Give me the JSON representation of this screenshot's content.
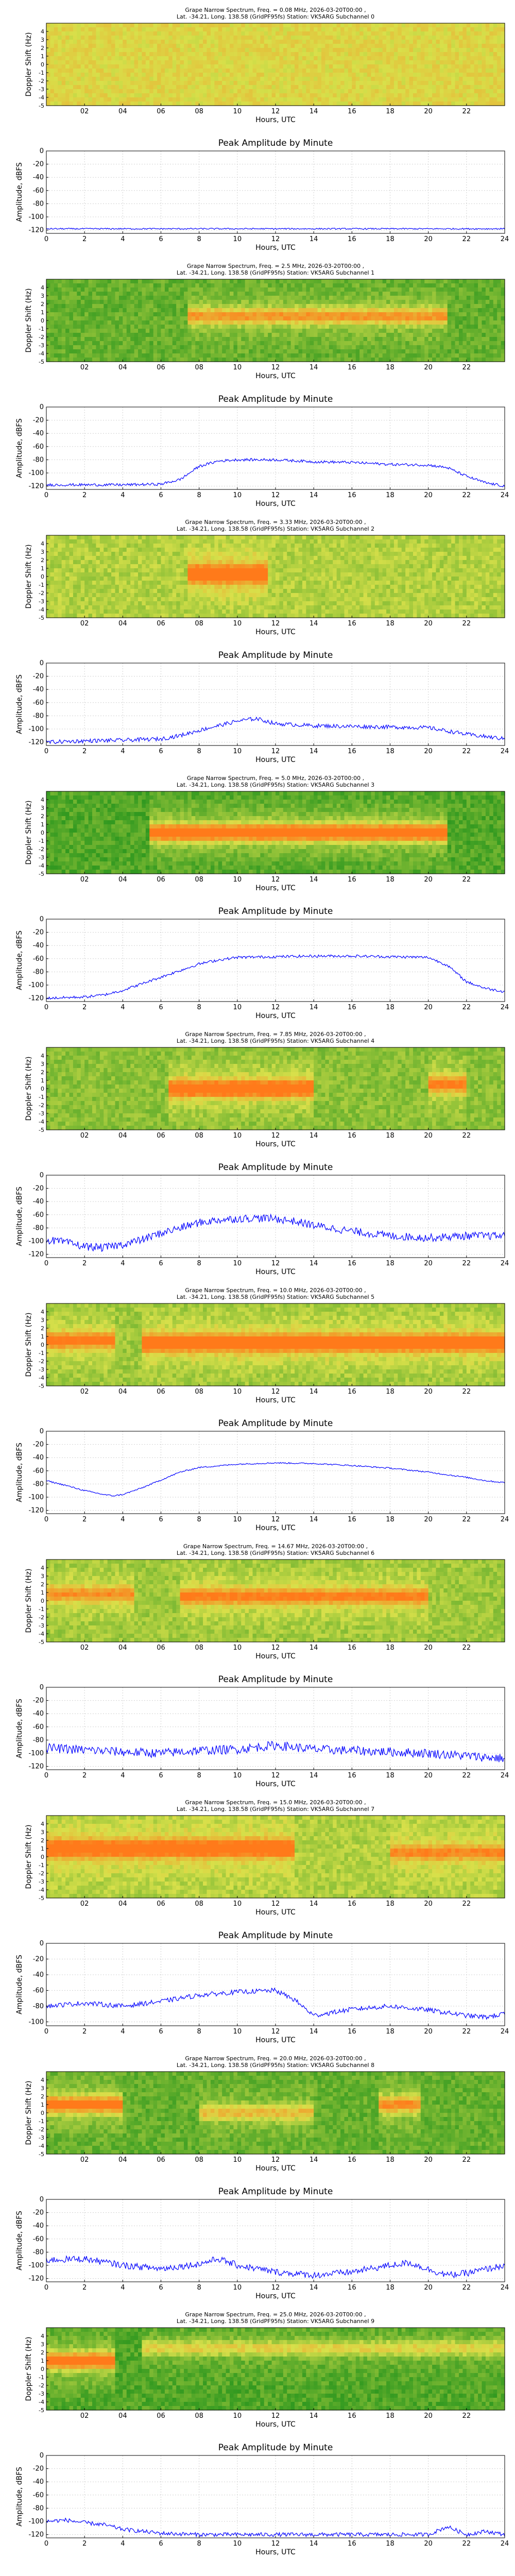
{
  "figure": {
    "spectrum_x_ticks": [
      "02",
      "04",
      "06",
      "08",
      "10",
      "12",
      "14",
      "16",
      "18",
      "20",
      "22"
    ],
    "amplitude_x_ticks": [
      "0",
      "2",
      "4",
      "6",
      "8",
      "10",
      "12",
      "14",
      "16",
      "18",
      "20",
      "22",
      "24"
    ],
    "doppler_y_ticks": [
      "4",
      "3",
      "2",
      "1",
      "0",
      "-1",
      "-2",
      "-3",
      "-4",
      "-5"
    ],
    "amplitude_y_ticks": [
      "0",
      "-20",
      "-40",
      "-60",
      "-80",
      "-100",
      "-120"
    ],
    "spectrum_xlabel": "Hours, UTC",
    "spectrum_ylabel": "Doppler Shift (Hz)",
    "amplitude_title": "Peak Amplitude by Minute",
    "amplitude_xlabel": "Hours, UTC",
    "amplitude_ylabel": "Amplitude, dBFS"
  },
  "colors": {
    "spectrum_low": "#1a8f1a",
    "spectrum_mid": "#d8e04a",
    "spectrum_high": "#ff7a1a",
    "amplitude_line": "#0000ff",
    "grid": "#d0d0d0"
  },
  "chart_data": [
    {
      "type": "heatmap",
      "subchannel": 0,
      "title": "Grape Narrow Spectrum, Freq. = 0.08 MHz, 2026-03-20T00:00 ,\nLat. -34.21, Long. 138.58 (GridPF95fs) Station: VK5ARG Subchannel 0",
      "xlabel": "Hours, UTC",
      "ylabel": "Doppler Shift (Hz)",
      "xlim": [
        0,
        24
      ],
      "ylim": [
        -5,
        5
      ],
      "base_level": 0.55,
      "signal": []
    },
    {
      "type": "line",
      "subchannel": 0,
      "title": "Peak Amplitude by Minute",
      "xlabel": "Hours, UTC",
      "ylabel": "Amplitude, dBFS",
      "xlim": [
        0,
        24
      ],
      "ylim": [
        -125,
        0
      ],
      "x": [
        0,
        2,
        4,
        6,
        8,
        10,
        12,
        14,
        16,
        18,
        20,
        22,
        24
      ],
      "y": [
        -118,
        -118,
        -118,
        -118,
        -118,
        -118,
        -118,
        -118,
        -118,
        -118,
        -118,
        -118,
        -118
      ],
      "noise": 1
    },
    {
      "type": "heatmap",
      "subchannel": 1,
      "title": "Grape Narrow Spectrum, Freq. = 2.5 MHz, 2026-03-20T00:00 ,\nLat. -34.21, Long. 138.58 (GridPF95fs) Station: VK5ARG Subchannel 1",
      "xlabel": "Hours, UTC",
      "ylabel": "Doppler Shift (Hz)",
      "xlim": [
        0,
        24
      ],
      "ylim": [
        -5,
        5
      ],
      "base_level": 0.2,
      "signal": [
        {
          "t0": 7.5,
          "t1": 21.0,
          "f": 0.5,
          "strength": 0.55
        }
      ]
    },
    {
      "type": "line",
      "subchannel": 1,
      "title": "Peak Amplitude by Minute",
      "xlabel": "Hours, UTC",
      "ylabel": "Amplitude, dBFS",
      "xlim": [
        0,
        24
      ],
      "ylim": [
        -125,
        0
      ],
      "x": [
        0,
        2,
        4,
        6,
        7,
        8,
        9,
        10,
        12,
        14,
        16,
        18,
        20,
        21,
        22,
        23,
        24
      ],
      "y": [
        -118,
        -118,
        -118,
        -117,
        -110,
        -90,
        -82,
        -80,
        -80,
        -83,
        -84,
        -87,
        -88,
        -92,
        -105,
        -115,
        -120
      ],
      "noise": 2
    },
    {
      "type": "heatmap",
      "subchannel": 2,
      "title": "Grape Narrow Spectrum, Freq. = 3.33 MHz, 2026-03-20T00:00 ,\nLat. -34.21, Long. 138.58 (GridPF95fs) Station: VK5ARG Subchannel 2",
      "xlabel": "Hours, UTC",
      "ylabel": "Doppler Shift (Hz)",
      "xlim": [
        0,
        24
      ],
      "ylim": [
        -5,
        5
      ],
      "base_level": 0.4,
      "signal": [
        {
          "t0": 7.5,
          "t1": 11.5,
          "f": 0.3,
          "strength": 0.9
        }
      ]
    },
    {
      "type": "line",
      "subchannel": 2,
      "title": "Peak Amplitude by Minute",
      "xlabel": "Hours, UTC",
      "ylabel": "Amplitude, dBFS",
      "xlim": [
        0,
        24
      ],
      "ylim": [
        -125,
        0
      ],
      "x": [
        0,
        2,
        4,
        6,
        7,
        8,
        9,
        10,
        11,
        12,
        14,
        16,
        18,
        20,
        22,
        24
      ],
      "y": [
        -120,
        -118,
        -117,
        -115,
        -110,
        -102,
        -95,
        -88,
        -84,
        -92,
        -95,
        -96,
        -97,
        -98,
        -108,
        -115
      ],
      "noise": 3
    },
    {
      "type": "heatmap",
      "subchannel": 3,
      "title": "Grape Narrow Spectrum, Freq. = 5.0 MHz, 2026-03-20T00:00 ,\nLat. -34.21, Long. 138.58 (GridPF95fs) Station: VK5ARG Subchannel 3",
      "xlabel": "Hours, UTC",
      "ylabel": "Doppler Shift (Hz)",
      "xlim": [
        0,
        24
      ],
      "ylim": [
        -5,
        5
      ],
      "base_level": 0.15,
      "signal": [
        {
          "t0": 5.5,
          "t1": 21.0,
          "f": 0.0,
          "strength": 0.95
        }
      ]
    },
    {
      "type": "line",
      "subchannel": 3,
      "title": "Peak Amplitude by Minute",
      "xlabel": "Hours, UTC",
      "ylabel": "Amplitude, dBFS",
      "xlim": [
        0,
        24
      ],
      "ylim": [
        -125,
        0
      ],
      "x": [
        0,
        2,
        3,
        4,
        5,
        6,
        7,
        8,
        9,
        10,
        12,
        14,
        16,
        18,
        20,
        21,
        22,
        23,
        24
      ],
      "y": [
        -120,
        -118,
        -115,
        -108,
        -98,
        -88,
        -78,
        -68,
        -62,
        -58,
        -57,
        -56,
        -56,
        -57,
        -58,
        -70,
        -95,
        -105,
        -110
      ],
      "noise": 2
    },
    {
      "type": "heatmap",
      "subchannel": 4,
      "title": "Grape Narrow Spectrum, Freq. = 7.85 MHz, 2026-03-20T00:00 ,\nLat. -34.21, Long. 138.58 (GridPF95fs) Station: VK5ARG Subchannel 4",
      "xlabel": "Hours, UTC",
      "ylabel": "Doppler Shift (Hz)",
      "xlim": [
        0,
        24
      ],
      "ylim": [
        -5,
        5
      ],
      "base_level": 0.3,
      "signal": [
        {
          "t0": 6.5,
          "t1": 14.0,
          "f": 0.0,
          "strength": 0.85
        },
        {
          "t0": 20.0,
          "t1": 22.0,
          "f": 0.5,
          "strength": 0.6
        }
      ]
    },
    {
      "type": "line",
      "subchannel": 4,
      "title": "Peak Amplitude by Minute",
      "xlabel": "Hours, UTC",
      "ylabel": "Amplitude, dBFS",
      "xlim": [
        0,
        24
      ],
      "ylim": [
        -125,
        0
      ],
      "x": [
        0,
        1,
        2,
        3,
        4,
        5,
        6,
        7,
        8,
        9,
        10,
        11,
        12,
        13,
        14,
        16,
        18,
        20,
        22,
        24
      ],
      "y": [
        -98,
        -102,
        -108,
        -110,
        -105,
        -98,
        -88,
        -80,
        -72,
        -68,
        -66,
        -65,
        -66,
        -70,
        -76,
        -85,
        -92,
        -95,
        -92,
        -92
      ],
      "noise": 6
    },
    {
      "type": "heatmap",
      "subchannel": 5,
      "title": "Grape Narrow Spectrum, Freq. = 10.0 MHz, 2026-03-20T00:00 ,\nLat. -34.21, Long. 138.58 (GridPF95fs) Station: VK5ARG Subchannel 5",
      "xlabel": "Hours, UTC",
      "ylabel": "Doppler Shift (Hz)",
      "xlim": [
        0,
        24
      ],
      "ylim": [
        -5,
        5
      ],
      "base_level": 0.35,
      "signal": [
        {
          "t0": 0.0,
          "t1": 3.5,
          "f": 0.5,
          "strength": 0.6
        },
        {
          "t0": 5.0,
          "t1": 24.0,
          "f": 0.2,
          "strength": 0.85
        }
      ]
    },
    {
      "type": "line",
      "subchannel": 5,
      "title": "Peak Amplitude by Minute",
      "xlabel": "Hours, UTC",
      "ylabel": "Amplitude, dBFS",
      "xlim": [
        0,
        24
      ],
      "ylim": [
        -125,
        0
      ],
      "x": [
        0,
        1,
        2,
        3,
        3.5,
        4,
        5,
        6,
        7,
        8,
        10,
        12,
        14,
        16,
        18,
        20,
        22,
        23,
        24
      ],
      "y": [
        -75,
        -82,
        -90,
        -96,
        -98,
        -96,
        -86,
        -74,
        -62,
        -55,
        -50,
        -48,
        -49,
        -52,
        -56,
        -62,
        -70,
        -75,
        -78
      ],
      "noise": 1
    },
    {
      "type": "heatmap",
      "subchannel": 6,
      "title": "Grape Narrow Spectrum, Freq. = 14.67 MHz, 2026-03-20T00:00 ,\nLat. -34.21, Long. 138.58 (GridPF95fs) Station: VK5ARG Subchannel 6",
      "xlabel": "Hours, UTC",
      "ylabel": "Doppler Shift (Hz)",
      "xlim": [
        0,
        24
      ],
      "ylim": [
        -5,
        5
      ],
      "base_level": 0.35,
      "signal": [
        {
          "t0": 0.0,
          "t1": 4.5,
          "f": 0.8,
          "strength": 0.45
        },
        {
          "t0": 7.0,
          "t1": 20.0,
          "f": 0.5,
          "strength": 0.55
        }
      ]
    },
    {
      "type": "line",
      "subchannel": 6,
      "title": "Peak Amplitude by Minute",
      "xlabel": "Hours, UTC",
      "ylabel": "Amplitude, dBFS",
      "xlim": [
        0,
        24
      ],
      "ylim": [
        -125,
        0
      ],
      "x": [
        0,
        2,
        4,
        6,
        8,
        10,
        12,
        14,
        16,
        18,
        20,
        22,
        24
      ],
      "y": [
        -92,
        -95,
        -98,
        -100,
        -96,
        -94,
        -88,
        -94,
        -96,
        -98,
        -100,
        -104,
        -108
      ],
      "noise": 7
    },
    {
      "type": "heatmap",
      "subchannel": 7,
      "title": "Grape Narrow Spectrum, Freq. = 15.0 MHz, 2026-03-20T00:00 ,\nLat. -34.21, Long. 138.58 (GridPF95fs) Station: VK5ARG Subchannel 7",
      "xlabel": "Hours, UTC",
      "ylabel": "Doppler Shift (Hz)",
      "xlim": [
        0,
        24
      ],
      "ylim": [
        -5,
        5
      ],
      "base_level": 0.4,
      "signal": [
        {
          "t0": 0.0,
          "t1": 13.0,
          "f": 1.0,
          "strength": 0.8
        },
        {
          "t0": 18.0,
          "t1": 24.0,
          "f": 0.5,
          "strength": 0.45
        }
      ]
    },
    {
      "type": "line",
      "subchannel": 7,
      "title": "Peak Amplitude by Minute",
      "xlabel": "Hours, UTC",
      "ylabel": "Amplitude, dBFS",
      "xlim": [
        0,
        24
      ],
      "ylim": [
        -105,
        0
      ],
      "x": [
        0,
        2,
        4,
        6,
        8,
        10,
        12,
        13,
        14,
        15,
        16,
        18,
        20,
        22,
        23,
        24
      ],
      "y": [
        -80,
        -76,
        -80,
        -74,
        -66,
        -62,
        -60,
        -72,
        -92,
        -88,
        -84,
        -80,
        -85,
        -92,
        -94,
        -90
      ],
      "noise": 3
    },
    {
      "type": "heatmap",
      "subchannel": 8,
      "title": "Grape Narrow Spectrum, Freq. = 20.0 MHz, 2026-03-20T00:00 ,\nLat. -34.21, Long. 138.58 (GridPF95fs) Station: VK5ARG Subchannel 8",
      "xlabel": "Hours, UTC",
      "ylabel": "Doppler Shift (Hz)",
      "xlim": [
        0,
        24
      ],
      "ylim": [
        -5,
        5
      ],
      "base_level": 0.2,
      "signal": [
        {
          "t0": 0.0,
          "t1": 4.0,
          "f": 1.0,
          "strength": 0.75
        },
        {
          "t0": 8.0,
          "t1": 14.0,
          "f": 0.0,
          "strength": 0.4
        },
        {
          "t0": 17.5,
          "t1": 19.5,
          "f": 1.0,
          "strength": 0.6
        }
      ]
    },
    {
      "type": "line",
      "subchannel": 8,
      "title": "Peak Amplitude by Minute",
      "xlabel": "Hours, UTC",
      "ylabel": "Amplitude, dBFS",
      "xlim": [
        0,
        24
      ],
      "ylim": [
        -125,
        0
      ],
      "x": [
        0,
        2,
        4,
        6,
        8,
        9,
        10,
        12,
        14,
        16,
        18,
        19,
        20,
        21,
        22,
        24
      ],
      "y": [
        -92,
        -90,
        -100,
        -105,
        -98,
        -90,
        -100,
        -110,
        -115,
        -110,
        -100,
        -96,
        -106,
        -115,
        -112,
        -100
      ],
      "noise": 5
    },
    {
      "type": "heatmap",
      "subchannel": 9,
      "title": "Grape Narrow Spectrum, Freq. = 25.0 MHz, 2026-03-20T00:00 ,\nLat. -34.21, Long. 138.58 (GridPF95fs) Station: VK5ARG Subchannel 9",
      "xlabel": "Hours, UTC",
      "ylabel": "Doppler Shift (Hz)",
      "xlim": [
        0,
        24
      ],
      "ylim": [
        -5,
        5
      ],
      "base_level": 0.15,
      "signal": [
        {
          "t0": 0.0,
          "t1": 3.5,
          "f": 1.0,
          "strength": 0.85
        },
        {
          "t0": 5.0,
          "t1": 24.0,
          "f": 2.5,
          "strength": 0.35
        }
      ]
    },
    {
      "type": "line",
      "subchannel": 9,
      "title": "Peak Amplitude by Minute",
      "xlabel": "Hours, UTC",
      "ylabel": "Amplitude, dBFS",
      "xlim": [
        0,
        24
      ],
      "ylim": [
        -125,
        0
      ],
      "x": [
        0,
        1,
        2,
        3,
        4,
        6,
        8,
        10,
        12,
        14,
        16,
        18,
        20,
        21,
        22,
        23,
        24
      ],
      "y": [
        -100,
        -98,
        -102,
        -105,
        -112,
        -118,
        -120,
        -120,
        -120,
        -120,
        -120,
        -120,
        -120,
        -108,
        -120,
        -115,
        -120
      ],
      "noise": 3
    }
  ]
}
